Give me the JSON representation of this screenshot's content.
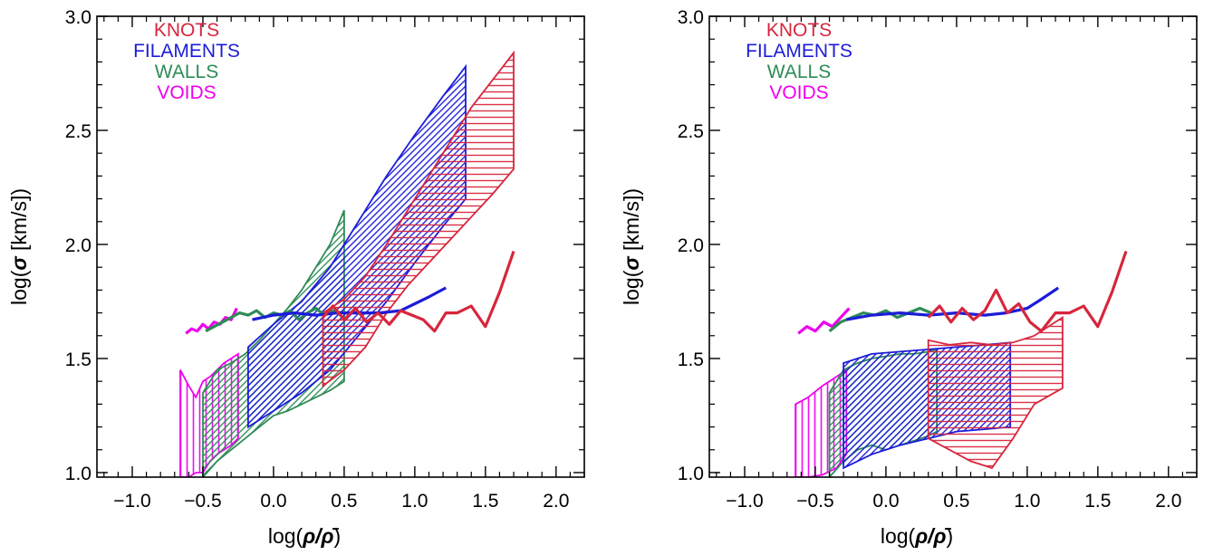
{
  "colors": {
    "knots": "#d7263d",
    "filaments": "#1c1cd9",
    "walls": "#2e8b57",
    "voids": "#ee00ee"
  },
  "chart_data": [
    {
      "type": "area",
      "xlabel_main": "log(",
      "xlabel_sym": "ρ/ρ̄",
      "xlabel_close": ")",
      "ylabel_main": "log(",
      "ylabel_sym": "σ",
      "ylabel_unit": " [km/s])",
      "xlim": [
        -1.25,
        2.2
      ],
      "ylim": [
        0.98,
        3.0
      ],
      "xticks": [
        "-1.0",
        "-0.5",
        "0.0",
        "0.5",
        "1.0",
        "1.5",
        "2.0"
      ],
      "xtick_values": [
        -1.0,
        -0.5,
        0.0,
        0.5,
        1.0,
        1.5,
        2.0
      ],
      "yticks": [
        "1.0",
        "1.5",
        "2.0",
        "2.5",
        "3.0"
      ],
      "ytick_values": [
        1.0,
        1.5,
        2.0,
        2.5,
        3.0
      ],
      "legend": [
        "KNOTS",
        "FILAMENTS",
        "WALLS",
        "VOIDS"
      ],
      "series": [
        {
          "name": "VOIDS",
          "color_key": "voids",
          "hatch": "vertical",
          "band_x": [
            -0.66,
            -0.6,
            -0.55,
            -0.5,
            -0.45,
            -0.4,
            -0.35,
            -0.3,
            -0.25
          ],
          "band_lo": [
            0.98,
            0.98,
            1.0,
            1.0,
            1.05,
            1.08,
            1.1,
            1.12,
            1.15
          ],
          "band_hi": [
            1.45,
            1.38,
            1.33,
            1.4,
            1.42,
            1.45,
            1.48,
            1.5,
            1.52
          ],
          "line_x": [
            -0.62,
            -0.58,
            -0.54,
            -0.5,
            -0.46,
            -0.42,
            -0.38,
            -0.34,
            -0.3,
            -0.26
          ],
          "line_y": [
            1.61,
            1.63,
            1.62,
            1.65,
            1.63,
            1.66,
            1.65,
            1.68,
            1.67,
            1.72
          ]
        },
        {
          "name": "WALLS",
          "color_key": "walls",
          "hatch": "diag-up",
          "band_x": [
            -0.5,
            -0.4,
            -0.3,
            -0.2,
            -0.1,
            0.0,
            0.1,
            0.2,
            0.3,
            0.4,
            0.5
          ],
          "band_lo": [
            0.98,
            1.05,
            1.1,
            1.15,
            1.2,
            1.25,
            1.27,
            1.3,
            1.33,
            1.36,
            1.4
          ],
          "band_hi": [
            1.35,
            1.45,
            1.48,
            1.52,
            1.58,
            1.65,
            1.72,
            1.8,
            1.9,
            2.0,
            2.15
          ],
          "line_x": [
            -0.48,
            -0.42,
            -0.36,
            -0.3,
            -0.24,
            -0.18,
            -0.12,
            -0.06,
            0.0,
            0.06,
            0.12,
            0.18,
            0.24,
            0.3,
            0.36,
            0.42,
            0.48
          ],
          "line_y": [
            1.62,
            1.64,
            1.66,
            1.68,
            1.7,
            1.69,
            1.71,
            1.68,
            1.7,
            1.69,
            1.71,
            1.67,
            1.7,
            1.72,
            1.69,
            1.71,
            1.7
          ]
        },
        {
          "name": "FILAMENTS",
          "color_key": "filaments",
          "hatch": "diag-up",
          "band_x": [
            -0.18,
            0.0,
            0.2,
            0.4,
            0.6,
            0.8,
            1.0,
            1.2,
            1.36
          ],
          "band_lo": [
            1.2,
            1.27,
            1.35,
            1.45,
            1.6,
            1.75,
            1.92,
            2.08,
            2.2
          ],
          "band_hi": [
            1.55,
            1.65,
            1.75,
            1.9,
            2.1,
            2.3,
            2.48,
            2.65,
            2.78
          ],
          "line_x": [
            -0.15,
            0.0,
            0.15,
            0.3,
            0.45,
            0.6,
            0.75,
            0.9,
            1.0,
            1.1,
            1.22
          ],
          "line_y": [
            1.67,
            1.69,
            1.7,
            1.69,
            1.7,
            1.7,
            1.7,
            1.71,
            1.74,
            1.77,
            1.81
          ]
        },
        {
          "name": "KNOTS",
          "color_key": "knots",
          "hatch": "horizontal",
          "band_x": [
            0.35,
            0.5,
            0.65,
            0.8,
            0.95,
            1.1,
            1.25,
            1.4,
            1.55,
            1.7
          ],
          "band_lo": [
            1.38,
            1.45,
            1.55,
            1.7,
            1.82,
            1.92,
            2.02,
            2.12,
            2.22,
            2.33
          ],
          "band_hi": [
            1.7,
            1.76,
            1.86,
            2.0,
            2.15,
            2.3,
            2.45,
            2.6,
            2.72,
            2.84
          ],
          "line_x": [
            0.35,
            0.42,
            0.5,
            0.58,
            0.66,
            0.74,
            0.82,
            0.9,
            0.98,
            1.06,
            1.14,
            1.22,
            1.3,
            1.4,
            1.5,
            1.6,
            1.7
          ],
          "line_y": [
            1.68,
            1.73,
            1.67,
            1.72,
            1.66,
            1.7,
            1.65,
            1.71,
            1.69,
            1.67,
            1.62,
            1.7,
            1.7,
            1.73,
            1.64,
            1.79,
            1.97
          ]
        }
      ]
    },
    {
      "type": "area",
      "xlabel_main": "log(",
      "xlabel_sym": "ρ/ρ̄",
      "xlabel_close": ")",
      "ylabel_main": "log(",
      "ylabel_sym": "σ",
      "ylabel_unit": " [km/s])",
      "xlim": [
        -1.25,
        2.2
      ],
      "ylim": [
        0.98,
        3.0
      ],
      "xticks": [
        "-1.0",
        "-0.5",
        "0.0",
        "0.5",
        "1.0",
        "1.5",
        "2.0"
      ],
      "xtick_values": [
        -1.0,
        -0.5,
        0.0,
        0.5,
        1.0,
        1.5,
        2.0
      ],
      "yticks": [
        "1.0",
        "1.5",
        "2.0",
        "2.5",
        "3.0"
      ],
      "ytick_values": [
        1.0,
        1.5,
        2.0,
        2.5,
        3.0
      ],
      "legend": [
        "KNOTS",
        "FILAMENTS",
        "WALLS",
        "VOIDS"
      ],
      "series": [
        {
          "name": "VOIDS",
          "color_key": "voids",
          "hatch": "vertical",
          "band_x": [
            -0.64,
            -0.55,
            -0.45,
            -0.35,
            -0.28
          ],
          "band_lo": [
            0.98,
            0.98,
            0.99,
            1.02,
            1.08
          ],
          "band_hi": [
            1.3,
            1.33,
            1.38,
            1.42,
            1.45
          ],
          "line_x": [
            -0.62,
            -0.56,
            -0.5,
            -0.44,
            -0.38,
            -0.32,
            -0.26
          ],
          "line_y": [
            1.61,
            1.64,
            1.62,
            1.66,
            1.64,
            1.68,
            1.72
          ]
        },
        {
          "name": "WALLS",
          "color_key": "walls",
          "hatch": "diag-up",
          "band_x": [
            -0.4,
            -0.3,
            -0.2,
            -0.1,
            0.0,
            0.1,
            0.2,
            0.3,
            0.36
          ],
          "band_lo": [
            0.98,
            1.05,
            1.1,
            1.12,
            1.1,
            1.12,
            1.14,
            1.16,
            1.18
          ],
          "band_hi": [
            1.35,
            1.45,
            1.48,
            1.5,
            1.51,
            1.52,
            1.52,
            1.53,
            1.54
          ],
          "line_x": [
            -0.4,
            -0.32,
            -0.24,
            -0.16,
            -0.08,
            0.0,
            0.08,
            0.16,
            0.24,
            0.32
          ],
          "line_y": [
            1.62,
            1.66,
            1.68,
            1.7,
            1.69,
            1.71,
            1.68,
            1.7,
            1.72,
            1.7
          ]
        },
        {
          "name": "FILAMENTS",
          "color_key": "filaments",
          "hatch": "diag-up",
          "band_x": [
            -0.3,
            -0.1,
            0.1,
            0.3,
            0.5,
            0.7,
            0.88
          ],
          "band_lo": [
            1.02,
            1.08,
            1.12,
            1.15,
            1.18,
            1.19,
            1.2
          ],
          "band_hi": [
            1.48,
            1.52,
            1.53,
            1.54,
            1.55,
            1.56,
            1.57
          ],
          "line_x": [
            -0.28,
            -0.1,
            0.1,
            0.3,
            0.5,
            0.7,
            0.85,
            1.0,
            1.1,
            1.22
          ],
          "line_y": [
            1.67,
            1.69,
            1.7,
            1.69,
            1.7,
            1.69,
            1.7,
            1.72,
            1.76,
            1.81
          ]
        },
        {
          "name": "KNOTS",
          "color_key": "knots",
          "hatch": "horizontal",
          "band_x": [
            0.3,
            0.45,
            0.6,
            0.75,
            0.9,
            1.05,
            1.25
          ],
          "band_lo": [
            1.15,
            1.1,
            1.05,
            1.02,
            1.15,
            1.3,
            1.37
          ],
          "band_hi": [
            1.58,
            1.56,
            1.57,
            1.56,
            1.57,
            1.6,
            1.68
          ],
          "line_x": [
            0.3,
            0.38,
            0.46,
            0.54,
            0.62,
            0.7,
            0.78,
            0.86,
            0.94,
            1.02,
            1.1,
            1.2,
            1.3,
            1.4,
            1.5,
            1.6,
            1.7
          ],
          "line_y": [
            1.68,
            1.73,
            1.66,
            1.72,
            1.67,
            1.71,
            1.8,
            1.7,
            1.74,
            1.66,
            1.62,
            1.7,
            1.7,
            1.73,
            1.64,
            1.79,
            1.97
          ]
        }
      ]
    }
  ]
}
